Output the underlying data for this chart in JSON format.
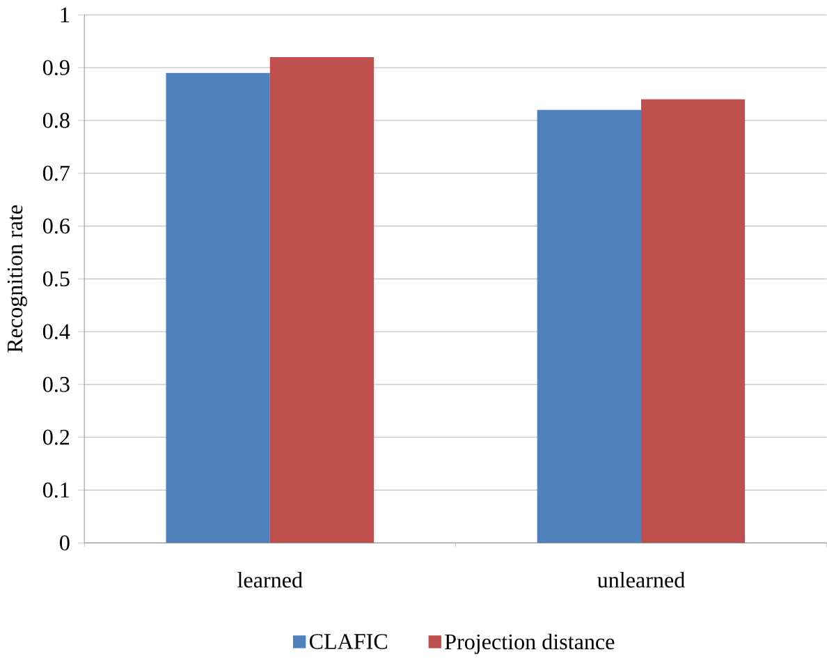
{
  "chart_data": {
    "type": "bar",
    "ylabel": "Recognition rate",
    "categories": [
      "learned",
      "unlearned"
    ],
    "series": [
      {
        "name": "CLAFIC",
        "color": "#4f81bd",
        "values": [
          0.89,
          0.82
        ]
      },
      {
        "name": "Projection distance",
        "color": "#c0504d",
        "values": [
          0.92,
          0.84
        ]
      }
    ],
    "ylim": [
      0,
      1
    ],
    "yticks": [
      0,
      0.1,
      0.2,
      0.3,
      0.4,
      0.5,
      0.6,
      0.7,
      0.8,
      0.9,
      1
    ],
    "grid": "y",
    "legend": "bottom"
  }
}
